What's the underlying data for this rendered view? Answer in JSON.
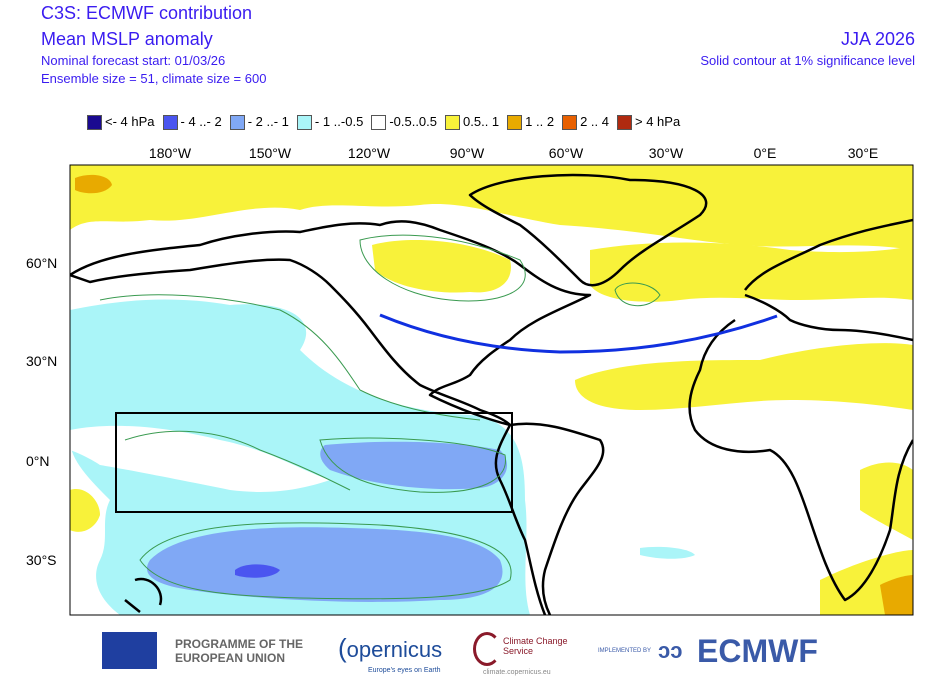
{
  "header": {
    "title": "C3S: ECMWF contribution",
    "subtitle": "Mean MSLP anomaly",
    "forecast_start": "Nominal forecast start: 01/03/26",
    "ensemble": "Ensemble size = 51, climate size = 600",
    "season": "JJA 2026",
    "significance": "Solid contour at 1% significance level"
  },
  "legend": [
    {
      "label": "<- 4 hPa",
      "color": "#1a0a90"
    },
    {
      "label": "- 4 ..- 2",
      "color": "#4a55f0"
    },
    {
      "label": "- 2 ..- 1",
      "color": "#80a8f5"
    },
    {
      "label": "- 1 ..-0.5",
      "color": "#aaf5f8"
    },
    {
      "label": "-0.5..0.5",
      "color": "#ffffff"
    },
    {
      "label": "0.5.. 1",
      "color": "#f8f23a"
    },
    {
      "label": "1 .. 2",
      "color": "#e8aa00"
    },
    {
      "label": "2 .. 4",
      "color": "#e86000"
    },
    {
      "label": ">  4 hPa",
      "color": "#b02a10"
    }
  ],
  "axes": {
    "lon": [
      "180°W",
      "150°W",
      "120°W",
      "90°W",
      "60°W",
      "30°W",
      "0°E",
      "30°E"
    ],
    "lat": [
      "60°N",
      "30°N",
      "0°N",
      "30°S"
    ]
  },
  "footer": {
    "eu": "PROGRAMME OF THE EUROPEAN UNION",
    "copernicus": "opernicus",
    "copernicus_tag": "Europe's eyes on Earth",
    "ccs": "Climate Change Service",
    "ccs_url": "climate.copernicus.eu",
    "implemented": "IMPLEMENTED BY",
    "ecmwf": "ECMWF"
  }
}
